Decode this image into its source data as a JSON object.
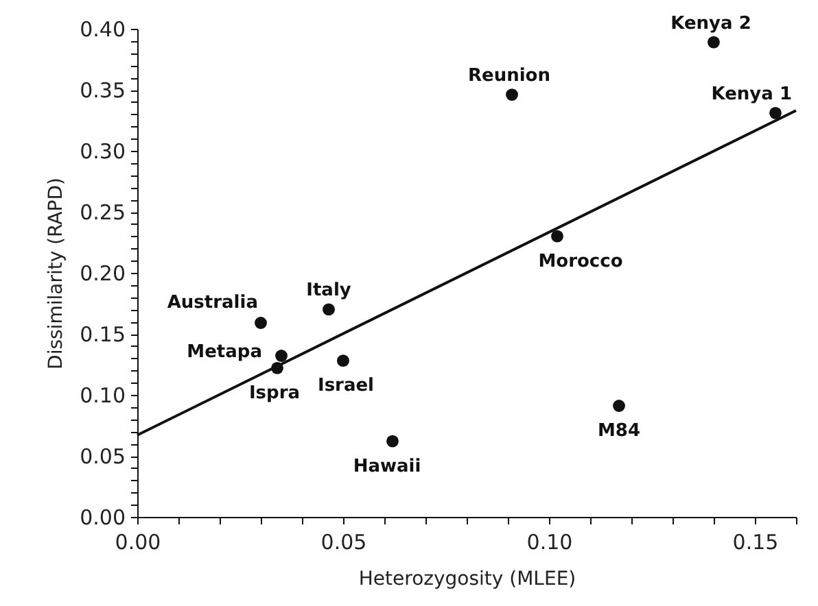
{
  "chart_data": {
    "type": "scatter",
    "xlabel": "Heterozygosity (MLEE)",
    "ylabel": "Dissimilarity (RAPD)",
    "xlim": [
      0,
      0.16
    ],
    "ylim": [
      0,
      0.4
    ],
    "xticks": [
      {
        "value": 0,
        "label": "0.00"
      },
      {
        "value": 0.01,
        "label": null
      },
      {
        "value": 0.02,
        "label": null
      },
      {
        "value": 0.03,
        "label": null
      },
      {
        "value": 0.04,
        "label": null
      },
      {
        "value": 0.05,
        "label": "0.05"
      },
      {
        "value": 0.06,
        "label": null
      },
      {
        "value": 0.07,
        "label": null
      },
      {
        "value": 0.08,
        "label": null
      },
      {
        "value": 0.09,
        "label": null
      },
      {
        "value": 0.1,
        "label": "0.10"
      },
      {
        "value": 0.11,
        "label": null
      },
      {
        "value": 0.12,
        "label": null
      },
      {
        "value": 0.13,
        "label": null
      },
      {
        "value": 0.14,
        "label": null
      },
      {
        "value": 0.15,
        "label": "0.15"
      },
      {
        "value": 0.16,
        "label": null
      }
    ],
    "yticks": [
      {
        "value": 0,
        "label": "0.00"
      },
      {
        "value": 0.01,
        "label": null
      },
      {
        "value": 0.02,
        "label": null
      },
      {
        "value": 0.03,
        "label": null
      },
      {
        "value": 0.04,
        "label": null
      },
      {
        "value": 0.05,
        "label": "0.05"
      },
      {
        "value": 0.06,
        "label": null
      },
      {
        "value": 0.07,
        "label": null
      },
      {
        "value": 0.08,
        "label": null
      },
      {
        "value": 0.09,
        "label": null
      },
      {
        "value": 0.1,
        "label": "0.10"
      },
      {
        "value": 0.11,
        "label": null
      },
      {
        "value": 0.12,
        "label": null
      },
      {
        "value": 0.13,
        "label": null
      },
      {
        "value": 0.14,
        "label": null
      },
      {
        "value": 0.15,
        "label": "0.15"
      },
      {
        "value": 0.16,
        "label": null
      },
      {
        "value": 0.17,
        "label": null
      },
      {
        "value": 0.18,
        "label": null
      },
      {
        "value": 0.19,
        "label": null
      },
      {
        "value": 0.2,
        "label": "0.20"
      },
      {
        "value": 0.21,
        "label": null
      },
      {
        "value": 0.22,
        "label": null
      },
      {
        "value": 0.23,
        "label": null
      },
      {
        "value": 0.24,
        "label": null
      },
      {
        "value": 0.25,
        "label": "0.25"
      },
      {
        "value": 0.26,
        "label": null
      },
      {
        "value": 0.27,
        "label": null
      },
      {
        "value": 0.28,
        "label": null
      },
      {
        "value": 0.29,
        "label": null
      },
      {
        "value": 0.3,
        "label": "0.30"
      },
      {
        "value": 0.31,
        "label": null
      },
      {
        "value": 0.32,
        "label": null
      },
      {
        "value": 0.33,
        "label": null
      },
      {
        "value": 0.34,
        "label": null
      },
      {
        "value": 0.35,
        "label": "0.35"
      },
      {
        "value": 0.36,
        "label": null
      },
      {
        "value": 0.37,
        "label": null
      },
      {
        "value": 0.38,
        "label": null
      },
      {
        "value": 0.39,
        "label": null
      },
      {
        "value": 0.4,
        "label": "0.40"
      }
    ],
    "grid": false,
    "series": [
      {
        "marker": "circle",
        "color": "#111111",
        "x": [
          0.03,
          0.0465,
          0.035,
          0.034,
          0.05,
          0.062,
          0.091,
          0.102,
          0.117,
          0.14,
          0.155
        ],
        "values": [
          0.159,
          0.17,
          0.132,
          0.122,
          0.128,
          0.062,
          0.346,
          0.23,
          0.091,
          0.389,
          0.331
        ]
      },
      {
        "type": "line",
        "color": "#111111",
        "line_style": "solid",
        "x": [
          0,
          0.16
        ],
        "values": [
          0.067,
          0.333
        ]
      }
    ],
    "annotations": [
      {
        "text": "Australia",
        "x": 0.03,
        "y": 0.159
      },
      {
        "text": "Italy",
        "x": 0.0465,
        "y": 0.17
      },
      {
        "text": "Metapa",
        "x": 0.035,
        "y": 0.132
      },
      {
        "text": "Ispra",
        "x": 0.034,
        "y": 0.122
      },
      {
        "text": "Israel",
        "x": 0.05,
        "y": 0.128
      },
      {
        "text": "Hawaii",
        "x": 0.062,
        "y": 0.062
      },
      {
        "text": "Reunion",
        "x": 0.091,
        "y": 0.346
      },
      {
        "text": "Morocco",
        "x": 0.102,
        "y": 0.23
      },
      {
        "text": "M84",
        "x": 0.117,
        "y": 0.091
      },
      {
        "text": "Kenya 2",
        "x": 0.14,
        "y": 0.389
      },
      {
        "text": "Kenya 1",
        "x": 0.155,
        "y": 0.331
      }
    ]
  }
}
